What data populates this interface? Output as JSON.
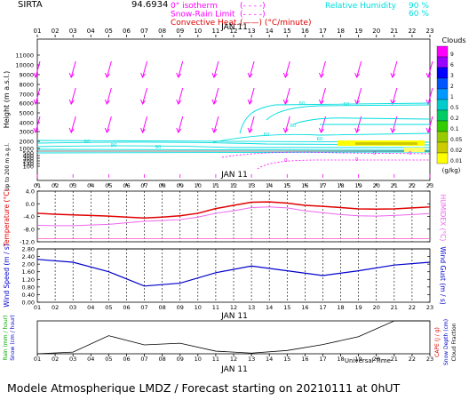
{
  "header": {
    "site": "SIRTA",
    "coords": "94.6934",
    "legend_left": [
      {
        "label": "0° isotherm",
        "line": "(- - - -)",
        "color": "#ff00ff"
      },
      {
        "label": "Snow-Rain Limit",
        "line": "(- - - -)",
        "color": "#ff00ff"
      },
      {
        "label": "Convective Heat.",
        "line": "(——) (°C/minute)",
        "color": "#e00000"
      }
    ],
    "legend_right": [
      {
        "label": "Relative Humidity",
        "value": "90 %",
        "color": "#00dddd"
      },
      {
        "label": "",
        "value": "60 %",
        "color": "#00dddd"
      }
    ],
    "date_label": "JAN 11"
  },
  "hours": [
    "01",
    "02",
    "03",
    "04",
    "05",
    "06",
    "07",
    "08",
    "09",
    "10",
    "11",
    "12",
    "13",
    "14",
    "15",
    "16",
    "17",
    "18",
    "19",
    "20",
    "21",
    "22",
    "23"
  ],
  "top_panel": {
    "ylabel": "Height (m a.s.l.)",
    "ylabel_low": "Up to 200 m a.g.l.",
    "yticks": [
      "11000",
      "10000",
      "9000",
      "8000",
      "7000",
      "6000",
      "5000",
      "4000",
      "3000",
      "2000",
      "1000",
      "500",
      "400",
      "300",
      "200",
      "140",
      "100"
    ],
    "contour_labels": [
      "60",
      "60",
      "60",
      "60",
      "90",
      "90",
      "60",
      "60"
    ],
    "clouds_title": "Clouds",
    "clouds_unit": "(g/kg)",
    "clouds_scale": [
      "9",
      "6",
      "3",
      "2",
      "1",
      "0.5",
      "0.2",
      "0.1",
      "0.05",
      "0.02",
      "0.01"
    ],
    "clouds_colors": [
      "#ff00ff",
      "#9900ff",
      "#0000ff",
      "#0055ff",
      "#0099ff",
      "#00cccc",
      "#00cc66",
      "#33cc00",
      "#99cc00",
      "#cccc00",
      "#ffff00"
    ],
    "isotherm_labels": [
      "0",
      "0",
      "0",
      "0"
    ]
  },
  "temp_panel": {
    "ylabel": "Temperature (°C)",
    "ylabel_right": "HUMIDEX (°C)",
    "yticks": [
      "4.0",
      "0.0",
      "-4.0",
      "-8.0",
      "-12.0"
    ],
    "ylim": [
      -12,
      4
    ]
  },
  "wind_panel": {
    "ylabel": "Wind Speed (m / s)",
    "ylabel_right": "Wind Gust (m / s)",
    "yticks": [
      "2.80",
      "2.40",
      "2.00",
      "1.60",
      "1.20",
      "0.80",
      "0.40",
      "0.00"
    ],
    "ylim": [
      0,
      2.8
    ]
  },
  "rain_panel": {
    "ylabel_rain": "Rain (mm / hour)",
    "ylabel_snow": "Snow (cm / hour)",
    "ylabel_capc": "CAPE (J / g)",
    "ylabel_snowdepth": "Snow Depth (cm)",
    "ylabel_cloudfrac": "Cloud Fraction",
    "xlabel": "Universal Time"
  },
  "chart_data": [
    {
      "type": "line",
      "title": "Temperature",
      "x": [
        "01",
        "02",
        "03",
        "04",
        "05",
        "06",
        "07",
        "08",
        "09",
        "10",
        "11",
        "12",
        "13",
        "14",
        "15",
        "16",
        "17",
        "18",
        "19",
        "20",
        "21",
        "22",
        "23"
      ],
      "ylim": [
        -12,
        4
      ],
      "series": [
        {
          "name": "Temperature",
          "color": "#e00000",
          "values": [
            -3.0,
            -3.3,
            -3.5,
            -3.7,
            -3.9,
            -4.2,
            -4.5,
            -4.2,
            -3.8,
            -3.0,
            -1.5,
            -0.5,
            0.5,
            0.6,
            0.2,
            -0.5,
            -0.8,
            -1.2,
            -1.6,
            -1.7,
            -1.6,
            -1.3,
            -1.0
          ]
        },
        {
          "name": "HUMIDEX",
          "color": "#ee66ee",
          "values": [
            -6.8,
            -6.9,
            -6.9,
            -6.7,
            -6.5,
            -6.0,
            -5.5,
            -5.3,
            -5.0,
            -4.2,
            -3.0,
            -2.2,
            -1.2,
            -1.0,
            -1.3,
            -2.2,
            -2.8,
            -3.4,
            -3.8,
            -3.9,
            -3.7,
            -3.4,
            -3.1
          ]
        },
        {
          "name": "0 °C",
          "color": "#ff66cc",
          "values": [
            -11,
            -11,
            -11,
            -11,
            -11,
            -11,
            -11,
            -11,
            -11,
            -11,
            -11,
            -11,
            -11,
            -11,
            -11,
            -11,
            -11,
            -11,
            -11,
            -11,
            -11,
            -11,
            -11
          ]
        }
      ]
    },
    {
      "type": "line",
      "title": "Wind Speed",
      "x": [
        "01",
        "03",
        "05",
        "07",
        "09",
        "11",
        "13",
        "15",
        "17",
        "19",
        "21",
        "23"
      ],
      "ylim": [
        0,
        2.8
      ],
      "series": [
        {
          "name": "Wind Speed",
          "color": "#0000cc",
          "values": [
            2.25,
            2.1,
            1.6,
            0.85,
            1.0,
            1.55,
            1.9,
            1.65,
            1.4,
            1.65,
            1.95,
            2.1
          ]
        }
      ]
    },
    {
      "type": "line",
      "title": "Cloud Fraction",
      "x": [
        "01",
        "03",
        "05",
        "07",
        "09",
        "11",
        "13",
        "15",
        "17",
        "19",
        "21",
        "23"
      ],
      "ylim": [
        0,
        1
      ],
      "series": [
        {
          "name": "Cloud Fraction",
          "color": "#000000",
          "values": [
            0.0,
            0.05,
            0.55,
            0.27,
            0.32,
            0.08,
            0.02,
            0.1,
            0.28,
            0.52,
            1.0,
            1.0
          ]
        }
      ]
    }
  ],
  "footer": {
    "text": "Modele Atmospherique LMDZ / Forecast starting on 20210111 at 0hUT"
  }
}
